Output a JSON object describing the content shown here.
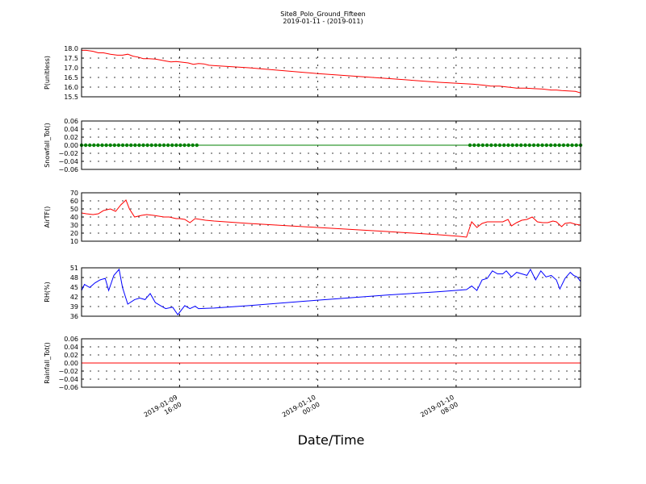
{
  "chart_data": {
    "title": "Site8_Polo_Ground_Fifteen",
    "subtitle": "2019-01-11 - (2019-011)",
    "xlabel": "Date/Time",
    "type": "line",
    "x_ticks": [
      {
        "line1": "2019-01-09",
        "line2": "16:00",
        "x": 16.0
      },
      {
        "line1": "2019-01-10",
        "line2": "00:00",
        "x": 24.0
      },
      {
        "line1": "2019-01-10",
        "line2": "08:00",
        "x": 32.0
      }
    ],
    "xlim": [
      10.33,
      39.2
    ],
    "panels": [
      {
        "id": "pressure",
        "ylabel": "P(unitless)",
        "ylim": [
          15.5,
          18.0
        ],
        "yticks": [
          "18.0",
          "17.5",
          "17.0",
          "16.5",
          "16.0",
          "15.5"
        ],
        "color": "#ff0000",
        "marker": false,
        "series": [
          {
            "x": 10.33,
            "y": 17.9
          },
          {
            "x": 10.6,
            "y": 17.9
          },
          {
            "x": 11.0,
            "y": 17.85
          },
          {
            "x": 11.3,
            "y": 17.77
          },
          {
            "x": 11.6,
            "y": 17.77
          },
          {
            "x": 12.0,
            "y": 17.7
          },
          {
            "x": 12.4,
            "y": 17.65
          },
          {
            "x": 12.7,
            "y": 17.65
          },
          {
            "x": 13.0,
            "y": 17.7
          },
          {
            "x": 13.3,
            "y": 17.6
          },
          {
            "x": 13.6,
            "y": 17.55
          },
          {
            "x": 13.9,
            "y": 17.47
          },
          {
            "x": 14.2,
            "y": 17.47
          },
          {
            "x": 14.6,
            "y": 17.45
          },
          {
            "x": 14.9,
            "y": 17.4
          },
          {
            "x": 15.2,
            "y": 17.35
          },
          {
            "x": 15.5,
            "y": 17.3
          },
          {
            "x": 15.8,
            "y": 17.32
          },
          {
            "x": 16.2,
            "y": 17.28
          },
          {
            "x": 16.5,
            "y": 17.25
          },
          {
            "x": 16.8,
            "y": 17.18
          },
          {
            "x": 17.1,
            "y": 17.22
          },
          {
            "x": 17.4,
            "y": 17.2
          },
          {
            "x": 17.7,
            "y": 17.13
          },
          {
            "x": 18.2,
            "y": 17.1
          },
          {
            "x": 20.0,
            "y": 17.0
          },
          {
            "x": 24.0,
            "y": 16.7
          },
          {
            "x": 28.0,
            "y": 16.45
          },
          {
            "x": 31.0,
            "y": 16.25
          },
          {
            "x": 33.0,
            "y": 16.15
          },
          {
            "x": 33.6,
            "y": 16.1
          },
          {
            "x": 34.0,
            "y": 16.05
          },
          {
            "x": 34.5,
            "y": 16.05
          },
          {
            "x": 35.0,
            "y": 16.0
          },
          {
            "x": 35.5,
            "y": 15.95
          },
          {
            "x": 36.0,
            "y": 15.95
          },
          {
            "x": 36.5,
            "y": 15.92
          },
          {
            "x": 37.0,
            "y": 15.9
          },
          {
            "x": 37.5,
            "y": 15.85
          },
          {
            "x": 37.8,
            "y": 15.85
          },
          {
            "x": 38.1,
            "y": 15.82
          },
          {
            "x": 38.5,
            "y": 15.8
          },
          {
            "x": 38.9,
            "y": 15.78
          },
          {
            "x": 39.2,
            "y": 15.7
          }
        ]
      },
      {
        "id": "snowfall",
        "ylabel": "Snowfall_Tot()",
        "ylim": [
          -0.06,
          0.06
        ],
        "yticks": [
          "0.06",
          "0.04",
          "0.02",
          "0.00",
          "−0.02",
          "−0.04",
          "−0.06"
        ],
        "color": "#008000",
        "marker": true,
        "series": [
          {
            "x": 10.33,
            "y": 0
          },
          {
            "x": 39.2,
            "y": 0
          }
        ],
        "marker_groups": [
          {
            "from": 10.33,
            "to": 17.0,
            "count": 29
          },
          {
            "from": 32.8,
            "to": 39.2,
            "count": 27
          }
        ]
      },
      {
        "id": "airtf",
        "ylabel": "AirTF()",
        "ylim": [
          10,
          70
        ],
        "yticks": [
          "70",
          "60",
          "50",
          "40",
          "30",
          "20",
          "10"
        ],
        "color": "#ff0000",
        "marker": false,
        "series": [
          {
            "x": 10.33,
            "y": 45
          },
          {
            "x": 10.6,
            "y": 44
          },
          {
            "x": 11.0,
            "y": 43
          },
          {
            "x": 11.3,
            "y": 44
          },
          {
            "x": 11.6,
            "y": 48
          },
          {
            "x": 12.0,
            "y": 50
          },
          {
            "x": 12.3,
            "y": 47
          },
          {
            "x": 12.6,
            "y": 55
          },
          {
            "x": 12.9,
            "y": 61
          },
          {
            "x": 13.1,
            "y": 50
          },
          {
            "x": 13.4,
            "y": 40
          },
          {
            "x": 13.8,
            "y": 42
          },
          {
            "x": 14.1,
            "y": 43
          },
          {
            "x": 14.5,
            "y": 42
          },
          {
            "x": 14.8,
            "y": 41
          },
          {
            "x": 15.1,
            "y": 40
          },
          {
            "x": 15.4,
            "y": 40
          },
          {
            "x": 15.8,
            "y": 38
          },
          {
            "x": 16.0,
            "y": 38
          },
          {
            "x": 16.3,
            "y": 37
          },
          {
            "x": 16.6,
            "y": 33
          },
          {
            "x": 16.9,
            "y": 38
          },
          {
            "x": 17.2,
            "y": 37
          },
          {
            "x": 17.5,
            "y": 36
          },
          {
            "x": 18.0,
            "y": 35
          },
          {
            "x": 20.0,
            "y": 32
          },
          {
            "x": 24.0,
            "y": 27
          },
          {
            "x": 28.0,
            "y": 22
          },
          {
            "x": 31.0,
            "y": 18
          },
          {
            "x": 32.2,
            "y": 16
          },
          {
            "x": 32.6,
            "y": 15
          },
          {
            "x": 32.9,
            "y": 34
          },
          {
            "x": 33.2,
            "y": 27
          },
          {
            "x": 33.5,
            "y": 32
          },
          {
            "x": 33.8,
            "y": 34
          },
          {
            "x": 34.1,
            "y": 34
          },
          {
            "x": 34.4,
            "y": 34
          },
          {
            "x": 34.7,
            "y": 34
          },
          {
            "x": 35.0,
            "y": 37
          },
          {
            "x": 35.2,
            "y": 29
          },
          {
            "x": 35.5,
            "y": 33
          },
          {
            "x": 35.8,
            "y": 36
          },
          {
            "x": 36.1,
            "y": 37
          },
          {
            "x": 36.4,
            "y": 40
          },
          {
            "x": 36.7,
            "y": 34
          },
          {
            "x": 37.0,
            "y": 33
          },
          {
            "x": 37.3,
            "y": 33
          },
          {
            "x": 37.6,
            "y": 35
          },
          {
            "x": 37.8,
            "y": 34
          },
          {
            "x": 38.1,
            "y": 28
          },
          {
            "x": 38.3,
            "y": 32
          },
          {
            "x": 38.6,
            "y": 33
          },
          {
            "x": 38.9,
            "y": 31
          },
          {
            "x": 39.2,
            "y": 30
          }
        ]
      },
      {
        "id": "rh",
        "ylabel": "RH(%)",
        "ylim": [
          35.5,
          51.5
        ],
        "yticks": [
          "51",
          "48",
          "45",
          "42",
          "39",
          "36"
        ],
        "color": "#0000ff",
        "marker": false,
        "series": [
          {
            "x": 10.33,
            "y": 44
          },
          {
            "x": 10.5,
            "y": 46
          },
          {
            "x": 10.8,
            "y": 45
          },
          {
            "x": 11.1,
            "y": 46.5
          },
          {
            "x": 11.4,
            "y": 47.5
          },
          {
            "x": 11.7,
            "y": 48
          },
          {
            "x": 11.9,
            "y": 44
          },
          {
            "x": 12.2,
            "y": 49
          },
          {
            "x": 12.5,
            "y": 51
          },
          {
            "x": 12.7,
            "y": 45
          },
          {
            "x": 13.0,
            "y": 39.5
          },
          {
            "x": 13.4,
            "y": 41
          },
          {
            "x": 13.7,
            "y": 41.5
          },
          {
            "x": 14.0,
            "y": 41
          },
          {
            "x": 14.3,
            "y": 43
          },
          {
            "x": 14.6,
            "y": 40
          },
          {
            "x": 14.9,
            "y": 39
          },
          {
            "x": 15.2,
            "y": 38
          },
          {
            "x": 15.6,
            "y": 38.5
          },
          {
            "x": 15.9,
            "y": 36
          },
          {
            "x": 16.3,
            "y": 39
          },
          {
            "x": 16.6,
            "y": 38
          },
          {
            "x": 16.9,
            "y": 38.8
          },
          {
            "x": 17.1,
            "y": 38
          },
          {
            "x": 18.0,
            "y": 38.2
          },
          {
            "x": 20.0,
            "y": 39
          },
          {
            "x": 24.0,
            "y": 40.8
          },
          {
            "x": 28.0,
            "y": 42.5
          },
          {
            "x": 31.0,
            "y": 43.6
          },
          {
            "x": 32.6,
            "y": 44.3
          },
          {
            "x": 32.9,
            "y": 45.5
          },
          {
            "x": 33.2,
            "y": 44
          },
          {
            "x": 33.5,
            "y": 47.5
          },
          {
            "x": 33.8,
            "y": 48
          },
          {
            "x": 34.1,
            "y": 50.5
          },
          {
            "x": 34.4,
            "y": 49.5
          },
          {
            "x": 34.7,
            "y": 49.5
          },
          {
            "x": 34.9,
            "y": 50.5
          },
          {
            "x": 35.2,
            "y": 48.5
          },
          {
            "x": 35.5,
            "y": 50
          },
          {
            "x": 35.8,
            "y": 49.5
          },
          {
            "x": 36.1,
            "y": 49
          },
          {
            "x": 36.3,
            "y": 51
          },
          {
            "x": 36.6,
            "y": 47.5
          },
          {
            "x": 36.9,
            "y": 50.5
          },
          {
            "x": 37.2,
            "y": 48.5
          },
          {
            "x": 37.5,
            "y": 49
          },
          {
            "x": 37.8,
            "y": 47.5
          },
          {
            "x": 38.0,
            "y": 44.5
          },
          {
            "x": 38.3,
            "y": 48
          },
          {
            "x": 38.6,
            "y": 50
          },
          {
            "x": 38.8,
            "y": 49
          },
          {
            "x": 39.0,
            "y": 48.5
          },
          {
            "x": 39.2,
            "y": 47
          }
        ]
      },
      {
        "id": "rainfall",
        "ylabel": "Rainfall_Tot()",
        "ylim": [
          -0.06,
          0.06
        ],
        "yticks": [
          "0.06",
          "0.04",
          "0.02",
          "0.00",
          "−0.02",
          "−0.04",
          "−0.06"
        ],
        "color": "#ff0000",
        "marker": false,
        "series": [
          {
            "x": 10.33,
            "y": 0
          },
          {
            "x": 39.2,
            "y": 0
          }
        ]
      }
    ]
  }
}
